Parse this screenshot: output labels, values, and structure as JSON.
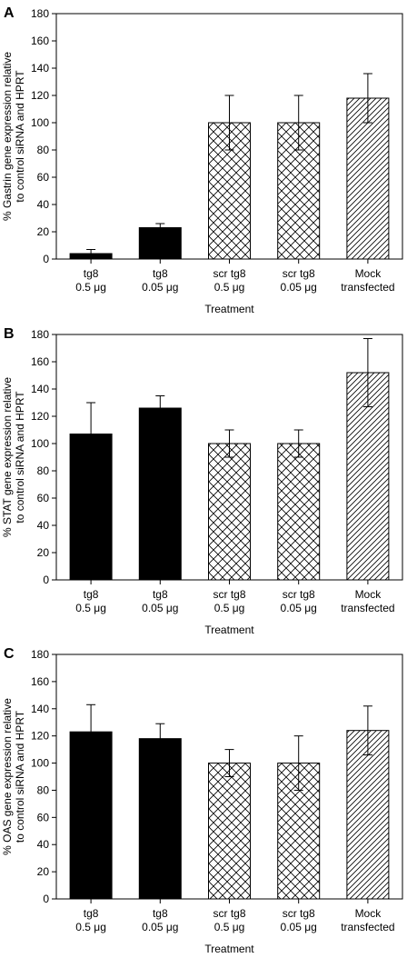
{
  "chart_data": [
    {
      "type": "bar",
      "panel": "A",
      "categories": [
        {
          "line1": "tg8",
          "line2": "0.5 μg"
        },
        {
          "line1": "tg8",
          "line2": "0.05 μg"
        },
        {
          "line1": "scr tg8",
          "line2": "0.5 μg"
        },
        {
          "line1": "scr tg8",
          "line2": "0.05 μg"
        },
        {
          "line1": "Mock",
          "line2": "transfected"
        }
      ],
      "values": [
        4,
        23,
        100,
        100,
        118
      ],
      "errors": [
        3,
        3,
        20,
        20,
        18
      ],
      "fills": [
        "solid",
        "solid",
        "crosshatch",
        "crosshatch",
        "diagonal"
      ],
      "xlabel": "Treatment",
      "ylabel_lines": [
        "% Gastrin gene expression relative",
        "to control siRNA and HPRT"
      ],
      "ylim": [
        0,
        180
      ],
      "yticks": [
        0,
        20,
        40,
        60,
        80,
        100,
        120,
        140,
        160,
        180
      ],
      "grid": false
    },
    {
      "type": "bar",
      "panel": "B",
      "categories": [
        {
          "line1": "tg8",
          "line2": "0.5 μg"
        },
        {
          "line1": "tg8",
          "line2": "0.05 μg"
        },
        {
          "line1": "scr tg8",
          "line2": "0.5 μg"
        },
        {
          "line1": "scr tg8",
          "line2": "0.05 μg"
        },
        {
          "line1": "Mock",
          "line2": "transfected"
        }
      ],
      "values": [
        107,
        126,
        100,
        100,
        152
      ],
      "errors": [
        23,
        9,
        10,
        10,
        25
      ],
      "fills": [
        "solid",
        "solid",
        "crosshatch",
        "crosshatch",
        "diagonal"
      ],
      "xlabel": "Treatment",
      "ylabel_lines": [
        "% STAT gene expression relative",
        "to control siRNA and HPRT"
      ],
      "ylim": [
        0,
        180
      ],
      "yticks": [
        0,
        20,
        40,
        60,
        80,
        100,
        120,
        140,
        160,
        180
      ],
      "grid": false
    },
    {
      "type": "bar",
      "panel": "C",
      "categories": [
        {
          "line1": "tg8",
          "line2": "0.5 μg"
        },
        {
          "line1": "tg8",
          "line2": "0.05 μg"
        },
        {
          "line1": "scr tg8",
          "line2": "0.5 μg"
        },
        {
          "line1": "scr tg8",
          "line2": "0.05 μg"
        },
        {
          "line1": "Mock",
          "line2": "transfected"
        }
      ],
      "values": [
        123,
        118,
        100,
        100,
        124
      ],
      "errors": [
        20,
        11,
        10,
        20,
        18
      ],
      "fills": [
        "solid",
        "solid",
        "crosshatch",
        "crosshatch",
        "diagonal"
      ],
      "xlabel": "Treatment",
      "ylabel_lines": [
        "% OAS gene expression relative",
        "to control siRNA and HPRT"
      ],
      "ylim": [
        0,
        180
      ],
      "yticks": [
        0,
        20,
        40,
        60,
        80,
        100,
        120,
        140,
        160,
        180
      ],
      "grid": false
    }
  ]
}
